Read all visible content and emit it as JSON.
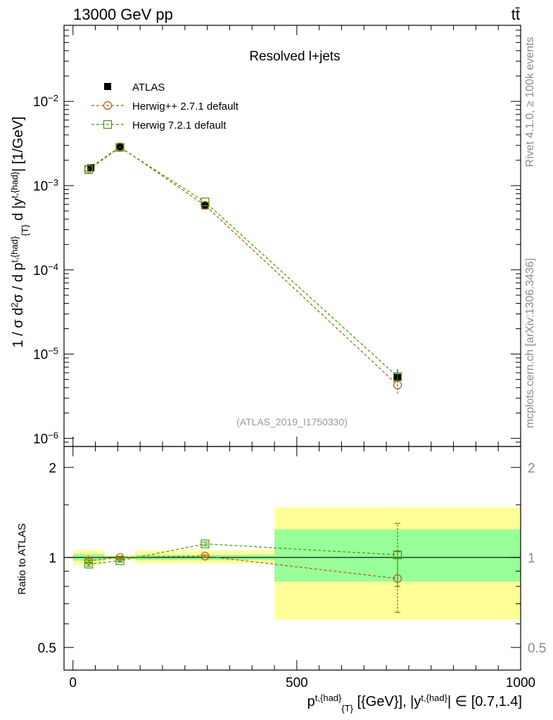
{
  "header": {
    "left": "13000 GeV pp",
    "right": "tt̄"
  },
  "side_labels": {
    "rivet": "Rivet 4.1.0, ≥ 100k events",
    "mcplots": "mcplots.cern.ch [arXiv:1306.3436]"
  },
  "chart_data": [
    {
      "type": "line",
      "title": "Resolved l+jets",
      "watermark": "(ATLAS_2019_I1750330)",
      "ylabel": "1 / σ d²σ / d p^{t,{had}}_{T} d |y^{t,{had}}| [1/GeV]",
      "yscale": "log",
      "ylim": [
        8e-07,
        0.08
      ],
      "xlim": [
        -20,
        1000
      ],
      "y_ticks": [
        {
          "value": 1e-06,
          "base": "10",
          "exp": "−6"
        },
        {
          "value": 1e-05,
          "base": "10",
          "exp": "−5"
        },
        {
          "value": 0.0001,
          "base": "10",
          "exp": "−4"
        },
        {
          "value": 0.001,
          "base": "10",
          "exp": "−3"
        },
        {
          "value": 0.01,
          "base": "10",
          "exp": "−2"
        }
      ],
      "series": [
        {
          "name": "ATLAS",
          "kind": "data",
          "color": "#000000",
          "x": [
            40,
            105,
            295,
            725
          ],
          "y": [
            0.00163,
            0.0029,
            0.000578,
            5.3e-06
          ],
          "err_lo": [
            0.00157,
            0.00282,
            0.00056,
            4.8e-06
          ],
          "err_hi": [
            0.00169,
            0.00298,
            0.000596,
            6.6e-06
          ]
        },
        {
          "name": "Herwig++ 2.7.1 default",
          "kind": "mc",
          "marker": "circle",
          "color": "#b35a00",
          "x": [
            35,
            105,
            295,
            725
          ],
          "y": [
            0.00159,
            0.00289,
            0.000585,
            4.3e-06
          ],
          "err_lo": [
            0.00157,
            0.00286,
            0.000575,
            3.4e-06
          ],
          "err_hi": [
            0.00161,
            0.00292,
            0.000595,
            5.4e-06
          ]
        },
        {
          "name": "Herwig 7.2.1 default",
          "kind": "mc",
          "marker": "square",
          "color": "#3a9a00",
          "x": [
            35,
            105,
            295,
            725
          ],
          "y": [
            0.00155,
            0.00284,
            0.00064,
            5.4e-06
          ],
          "err_lo": [
            0.00153,
            0.00281,
            0.00063,
            4.6e-06
          ],
          "err_hi": [
            0.00157,
            0.00287,
            0.00065,
            6.4e-06
          ]
        }
      ]
    },
    {
      "type": "line",
      "ylabel": "Ratio to ATLAS",
      "yscale": "log",
      "ylim": [
        0.42,
        2.35
      ],
      "xlim": [
        -20,
        1000
      ],
      "xlabel": "p^{t,{had}}_{T} [{GeV}], |y^{t,{had}}| ∈ [0.7,1.4]",
      "x_ticks": [
        "0",
        "500",
        "1000"
      ],
      "y_ticks": [
        "0.5",
        "1",
        "2"
      ],
      "bands": [
        {
          "x0": 0,
          "x1": 70,
          "yellow": [
            0.945,
            1.06
          ],
          "green": [
            0.975,
            1.025
          ]
        },
        {
          "x0": 70,
          "x1": 140,
          "yellow": [
            0.985,
            1.015
          ],
          "green": [
            0.99,
            1.01
          ]
        },
        {
          "x0": 140,
          "x1": 450,
          "yellow": [
            0.955,
            1.055
          ],
          "green": [
            0.98,
            1.02
          ]
        },
        {
          "x0": 450,
          "x1": 1000,
          "yellow": [
            0.62,
            1.47
          ],
          "green": [
            0.83,
            1.24
          ]
        }
      ],
      "series": [
        {
          "name": "Herwig++ 2.7.1 default",
          "marker": "circle",
          "color": "#b35a00",
          "x": [
            35,
            105,
            295,
            725
          ],
          "y": [
            0.975,
            1.0,
            1.01,
            0.85
          ],
          "err_lo": [
            0.96,
            0.99,
            1.0,
            0.655
          ],
          "err_hi": [
            0.99,
            1.01,
            1.02,
            1.045
          ]
        },
        {
          "name": "Herwig 7.2.1 default",
          "marker": "square",
          "color": "#3a9a00",
          "x": [
            35,
            105,
            295,
            725
          ],
          "y": [
            0.95,
            0.975,
            1.11,
            1.02
          ],
          "err_lo": [
            0.935,
            0.965,
            1.095,
            0.8
          ],
          "err_hi": [
            0.965,
            0.985,
            1.125,
            1.3
          ]
        }
      ]
    }
  ]
}
